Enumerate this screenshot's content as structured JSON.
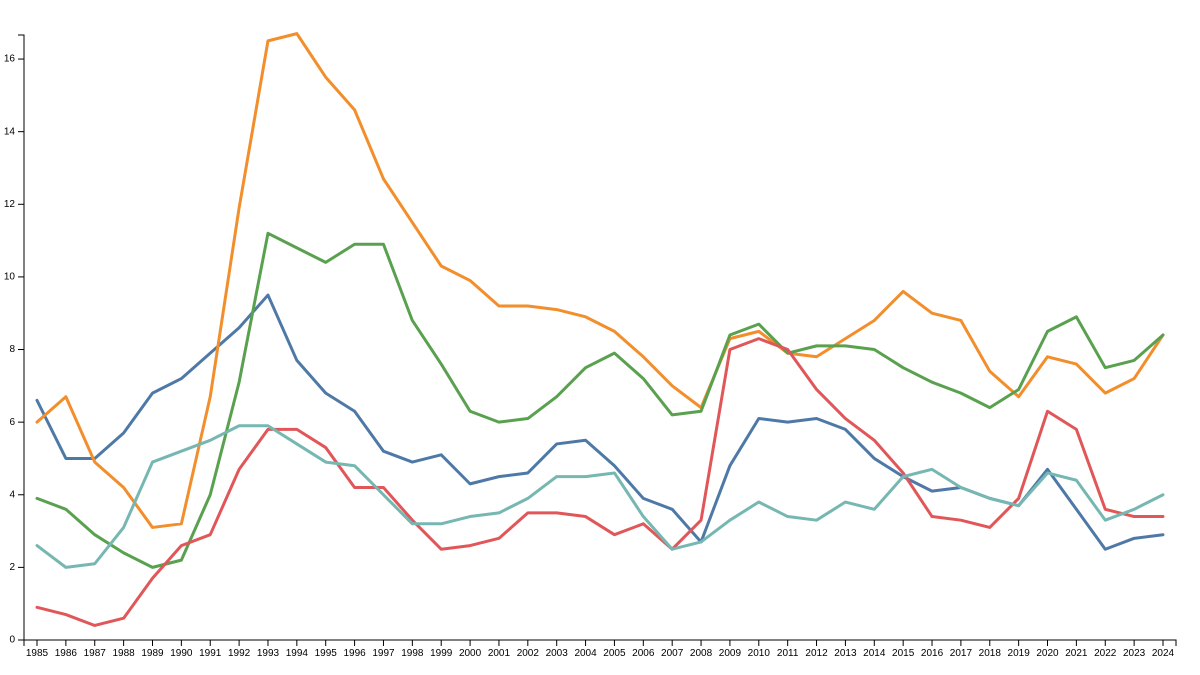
{
  "chart_data": {
    "type": "line",
    "title": "",
    "xlabel": "",
    "ylabel": "",
    "x": [
      1985,
      1986,
      1987,
      1988,
      1989,
      1990,
      1991,
      1992,
      1993,
      1994,
      1995,
      1996,
      1997,
      1998,
      1999,
      2000,
      2001,
      2002,
      2003,
      2004,
      2005,
      2006,
      2007,
      2008,
      2009,
      2010,
      2011,
      2012,
      2013,
      2014,
      2015,
      2016,
      2017,
      2018,
      2019,
      2020,
      2021,
      2022,
      2023,
      2024
    ],
    "x_tick_labels": [
      "1985",
      "1986",
      "1987",
      "1988",
      "1989",
      "1990",
      "1991",
      "1992",
      "1993",
      "1994",
      "1995",
      "1996",
      "1997",
      "1998",
      "1999",
      "2000",
      "2001",
      "2002",
      "2003",
      "2004",
      "2005",
      "2006",
      "2007",
      "2008",
      "2009",
      "2010",
      "2011",
      "2012",
      "2013",
      "2014",
      "2015",
      "2016",
      "2017",
      "2018",
      "2019",
      "2020",
      "2021",
      "2022",
      "2023",
      "2024"
    ],
    "ylim": [
      0,
      16.8
    ],
    "y_ticks": [
      0,
      2,
      4,
      6,
      8,
      10,
      12,
      14,
      16
    ],
    "y_tick_labels": [
      "0",
      "2",
      "4",
      "6",
      "8",
      "10",
      "12",
      "14",
      "16"
    ],
    "grid": false,
    "legend": "none",
    "series": [
      {
        "color": "#4e79a7",
        "values": [
          6.6,
          5.0,
          5.0,
          5.7,
          6.8,
          7.2,
          7.9,
          8.6,
          9.5,
          7.7,
          6.8,
          6.3,
          5.2,
          4.9,
          5.1,
          4.3,
          4.5,
          4.6,
          5.4,
          5.5,
          4.8,
          3.9,
          3.6,
          2.7,
          4.8,
          6.1,
          6.0,
          6.1,
          5.8,
          5.0,
          4.5,
          4.1,
          4.2,
          3.9,
          3.7,
          4.7,
          3.6,
          2.5,
          2.8,
          2.9
        ]
      },
      {
        "color": "#f28e2b",
        "values": [
          6.0,
          6.7,
          4.9,
          4.2,
          3.1,
          3.2,
          6.7,
          11.9,
          16.5,
          16.7,
          15.5,
          14.6,
          12.7,
          11.5,
          10.3,
          9.9,
          9.2,
          9.2,
          9.1,
          8.9,
          8.5,
          7.8,
          7.0,
          6.4,
          8.3,
          8.5,
          7.9,
          7.8,
          8.3,
          8.8,
          9.6,
          9.0,
          8.8,
          7.4,
          6.7,
          7.8,
          7.6,
          6.8,
          7.2,
          8.4
        ]
      },
      {
        "color": "#59a14f",
        "values": [
          3.9,
          3.6,
          2.9,
          2.4,
          2.0,
          2.2,
          4.0,
          7.1,
          11.2,
          10.8,
          10.4,
          10.9,
          10.9,
          8.8,
          7.6,
          6.3,
          6.0,
          6.1,
          6.7,
          7.5,
          7.9,
          7.2,
          6.2,
          6.3,
          8.4,
          8.7,
          7.9,
          8.1,
          8.1,
          8.0,
          7.5,
          7.1,
          6.8,
          6.4,
          6.9,
          8.5,
          8.9,
          7.5,
          7.7,
          8.4
        ]
      },
      {
        "color": "#e15759",
        "values": [
          0.9,
          0.7,
          0.4,
          0.6,
          1.7,
          2.6,
          2.9,
          4.7,
          5.8,
          5.8,
          5.3,
          4.2,
          4.2,
          3.3,
          2.5,
          2.6,
          2.8,
          3.5,
          3.5,
          3.4,
          2.9,
          3.2,
          2.5,
          3.3,
          8.0,
          8.3,
          8.0,
          6.9,
          6.1,
          5.5,
          4.6,
          3.4,
          3.3,
          3.1,
          3.9,
          6.3,
          5.8,
          3.6,
          3.4,
          3.4
        ]
      },
      {
        "color": "#76b7b2",
        "values": [
          2.6,
          2.0,
          2.1,
          3.1,
          4.9,
          5.2,
          5.5,
          5.9,
          5.9,
          5.4,
          4.9,
          4.8,
          4.0,
          3.2,
          3.2,
          3.4,
          3.5,
          3.9,
          4.5,
          4.5,
          4.6,
          3.4,
          2.5,
          2.7,
          3.3,
          3.8,
          3.4,
          3.3,
          3.8,
          3.6,
          4.5,
          4.7,
          4.2,
          3.9,
          3.7,
          4.6,
          4.4,
          3.3,
          3.6,
          4.0
        ]
      }
    ]
  }
}
